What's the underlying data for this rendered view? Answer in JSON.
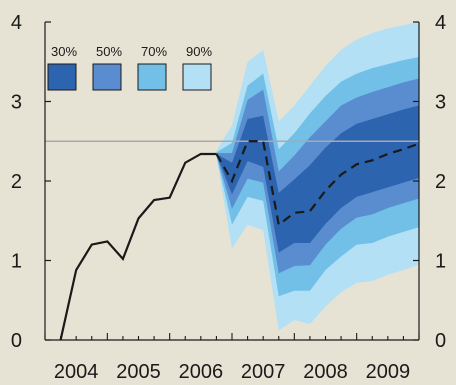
{
  "chart_data": {
    "type": "area",
    "title": "",
    "xlabel": "",
    "ylabel": "",
    "xlim": [
      2004.0,
      2010.0
    ],
    "ylim": [
      0,
      4
    ],
    "grid": false,
    "reference_line": {
      "y": 2.5,
      "color": "#a9a9a9"
    },
    "x_ticks": [
      "2004",
      "2005",
      "2006",
      "2007",
      "2008",
      "2009"
    ],
    "y_ticks_left": [
      "0",
      "1",
      "2",
      "3",
      "4"
    ],
    "y_ticks_right": [
      "0",
      "1",
      "2",
      "3",
      "4"
    ],
    "legend": {
      "placement": "top-left",
      "entries": [
        {
          "label": "30%",
          "color": "#2c64b0"
        },
        {
          "label": "50%",
          "color": "#5a8cd0"
        },
        {
          "label": "70%",
          "color": "#72bfe8"
        },
        {
          "label": "90%",
          "color": "#b3e0f4"
        }
      ]
    },
    "history_series": {
      "style": "solid",
      "color": "#1a1a1a",
      "x": [
        2004.25,
        2004.5,
        2004.75,
        2005.0,
        2005.25,
        2005.5,
        2005.75,
        2006.0,
        2006.25,
        2006.5,
        2006.75
      ],
      "y": [
        0.0,
        0.88,
        1.2,
        1.24,
        1.02,
        1.53,
        1.76,
        1.79,
        2.23,
        2.34,
        2.34
      ]
    },
    "central_projection": {
      "style": "dashed",
      "color": "#1a1a1a",
      "x": [
        2006.75,
        2007.0,
        2007.25,
        2007.5,
        2007.75,
        2008.0,
        2008.25,
        2008.5,
        2008.75,
        2009.0,
        2009.25,
        2009.5,
        2009.75,
        2010.0
      ],
      "y": [
        2.34,
        2.0,
        2.5,
        2.5,
        1.45,
        1.6,
        1.62,
        1.88,
        2.08,
        2.21,
        2.26,
        2.34,
        2.4,
        2.47
      ]
    },
    "fan_bands": {
      "x": [
        2006.75,
        2007.0,
        2007.25,
        2007.5,
        2007.75,
        2008.0,
        2008.25,
        2008.5,
        2008.75,
        2009.0,
        2009.25,
        2009.5,
        2009.75,
        2010.0
      ],
      "bands": [
        {
          "name": "90%",
          "color": "#b3e0f4",
          "upper": [
            2.38,
            2.7,
            3.5,
            3.65,
            2.75,
            2.95,
            3.2,
            3.45,
            3.65,
            3.78,
            3.86,
            3.92,
            3.96,
            4.0
          ],
          "lower": [
            2.3,
            1.15,
            1.45,
            1.38,
            0.12,
            0.25,
            0.2,
            0.42,
            0.6,
            0.72,
            0.74,
            0.82,
            0.88,
            0.95
          ]
        },
        {
          "name": "70%",
          "color": "#72bfe8",
          "upper": [
            2.36,
            2.48,
            3.2,
            3.35,
            2.4,
            2.6,
            2.85,
            3.07,
            3.25,
            3.35,
            3.42,
            3.47,
            3.52,
            3.56
          ],
          "lower": [
            2.32,
            1.45,
            1.8,
            1.75,
            0.55,
            0.62,
            0.62,
            0.88,
            1.05,
            1.2,
            1.22,
            1.3,
            1.36,
            1.42
          ]
        },
        {
          "name": "50%",
          "color": "#5a8cd0",
          "upper": [
            2.35,
            2.35,
            3.02,
            3.15,
            2.12,
            2.32,
            2.55,
            2.75,
            2.95,
            3.05,
            3.12,
            3.18,
            3.24,
            3.29
          ],
          "lower": [
            2.33,
            1.65,
            2.03,
            1.98,
            0.84,
            0.93,
            0.94,
            1.2,
            1.4,
            1.54,
            1.58,
            1.66,
            1.72,
            1.78
          ]
        },
        {
          "name": "30%",
          "color": "#2c64b0",
          "upper": [
            2.34,
            2.23,
            2.78,
            2.82,
            1.85,
            2.02,
            2.2,
            2.42,
            2.6,
            2.72,
            2.78,
            2.84,
            2.9,
            2.95
          ],
          "lower": [
            2.34,
            1.83,
            2.25,
            2.18,
            1.1,
            1.22,
            1.22,
            1.46,
            1.66,
            1.8,
            1.86,
            1.92,
            1.98,
            2.04
          ]
        }
      ]
    }
  }
}
